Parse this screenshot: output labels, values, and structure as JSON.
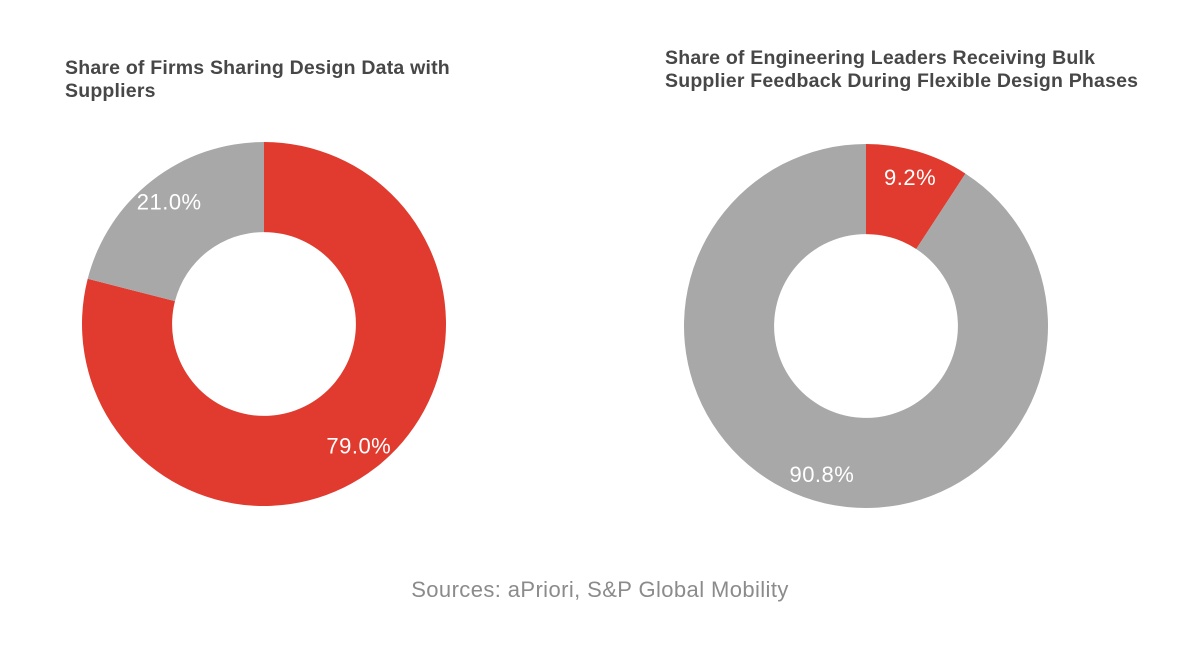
{
  "colors": {
    "accent_red": "#e03b2e",
    "neutral_gray": "#a8a8a8",
    "title_text": "#474747",
    "source_text": "#8b8b8b",
    "label_text": "#ffffff",
    "background": "#ffffff"
  },
  "footer": {
    "source_note": "Sources: aPriori, S&P Global Mobility"
  },
  "chart_data": [
    {
      "type": "pie",
      "subtype": "donut",
      "title": "Share of Firms Sharing Design Data with Suppliers",
      "hole_ratio": 0.505,
      "start_angle_deg": 0,
      "direction": "clockwise",
      "legend": "none",
      "slices": [
        {
          "value": 79.0,
          "label": "79.0%",
          "color": "#e03b2e"
        },
        {
          "value": 21.0,
          "label": "21.0%",
          "color": "#a8a8a8"
        }
      ]
    },
    {
      "type": "pie",
      "subtype": "donut",
      "title": "Share of Engineering Leaders Receiving Bulk Supplier Feedback During Flexible Design Phases",
      "hole_ratio": 0.505,
      "start_angle_deg": 0,
      "direction": "clockwise",
      "legend": "none",
      "slices": [
        {
          "value": 9.2,
          "label": "9.2%",
          "color": "#e03b2e"
        },
        {
          "value": 90.8,
          "label": "90.8%",
          "color": "#a8a8a8"
        }
      ]
    }
  ]
}
